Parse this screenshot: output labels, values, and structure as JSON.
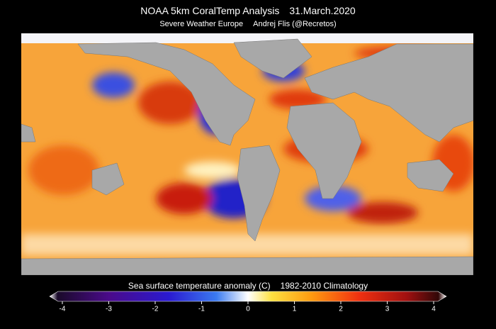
{
  "header": {
    "title": "NOAA 5km CoralTemp Analysis",
    "date": "31.March.2020",
    "source": "Severe Weather Europe",
    "author": "Andrej Flis (@Recretos)"
  },
  "colorbar": {
    "label": "Sea surface temperature anomaly (C)",
    "climatology": "1982-2010 Climatology",
    "lim": [
      -4,
      4
    ],
    "ticks": [
      -4,
      -3,
      -2,
      -1,
      0,
      1,
      2,
      3,
      4
    ]
  }
}
